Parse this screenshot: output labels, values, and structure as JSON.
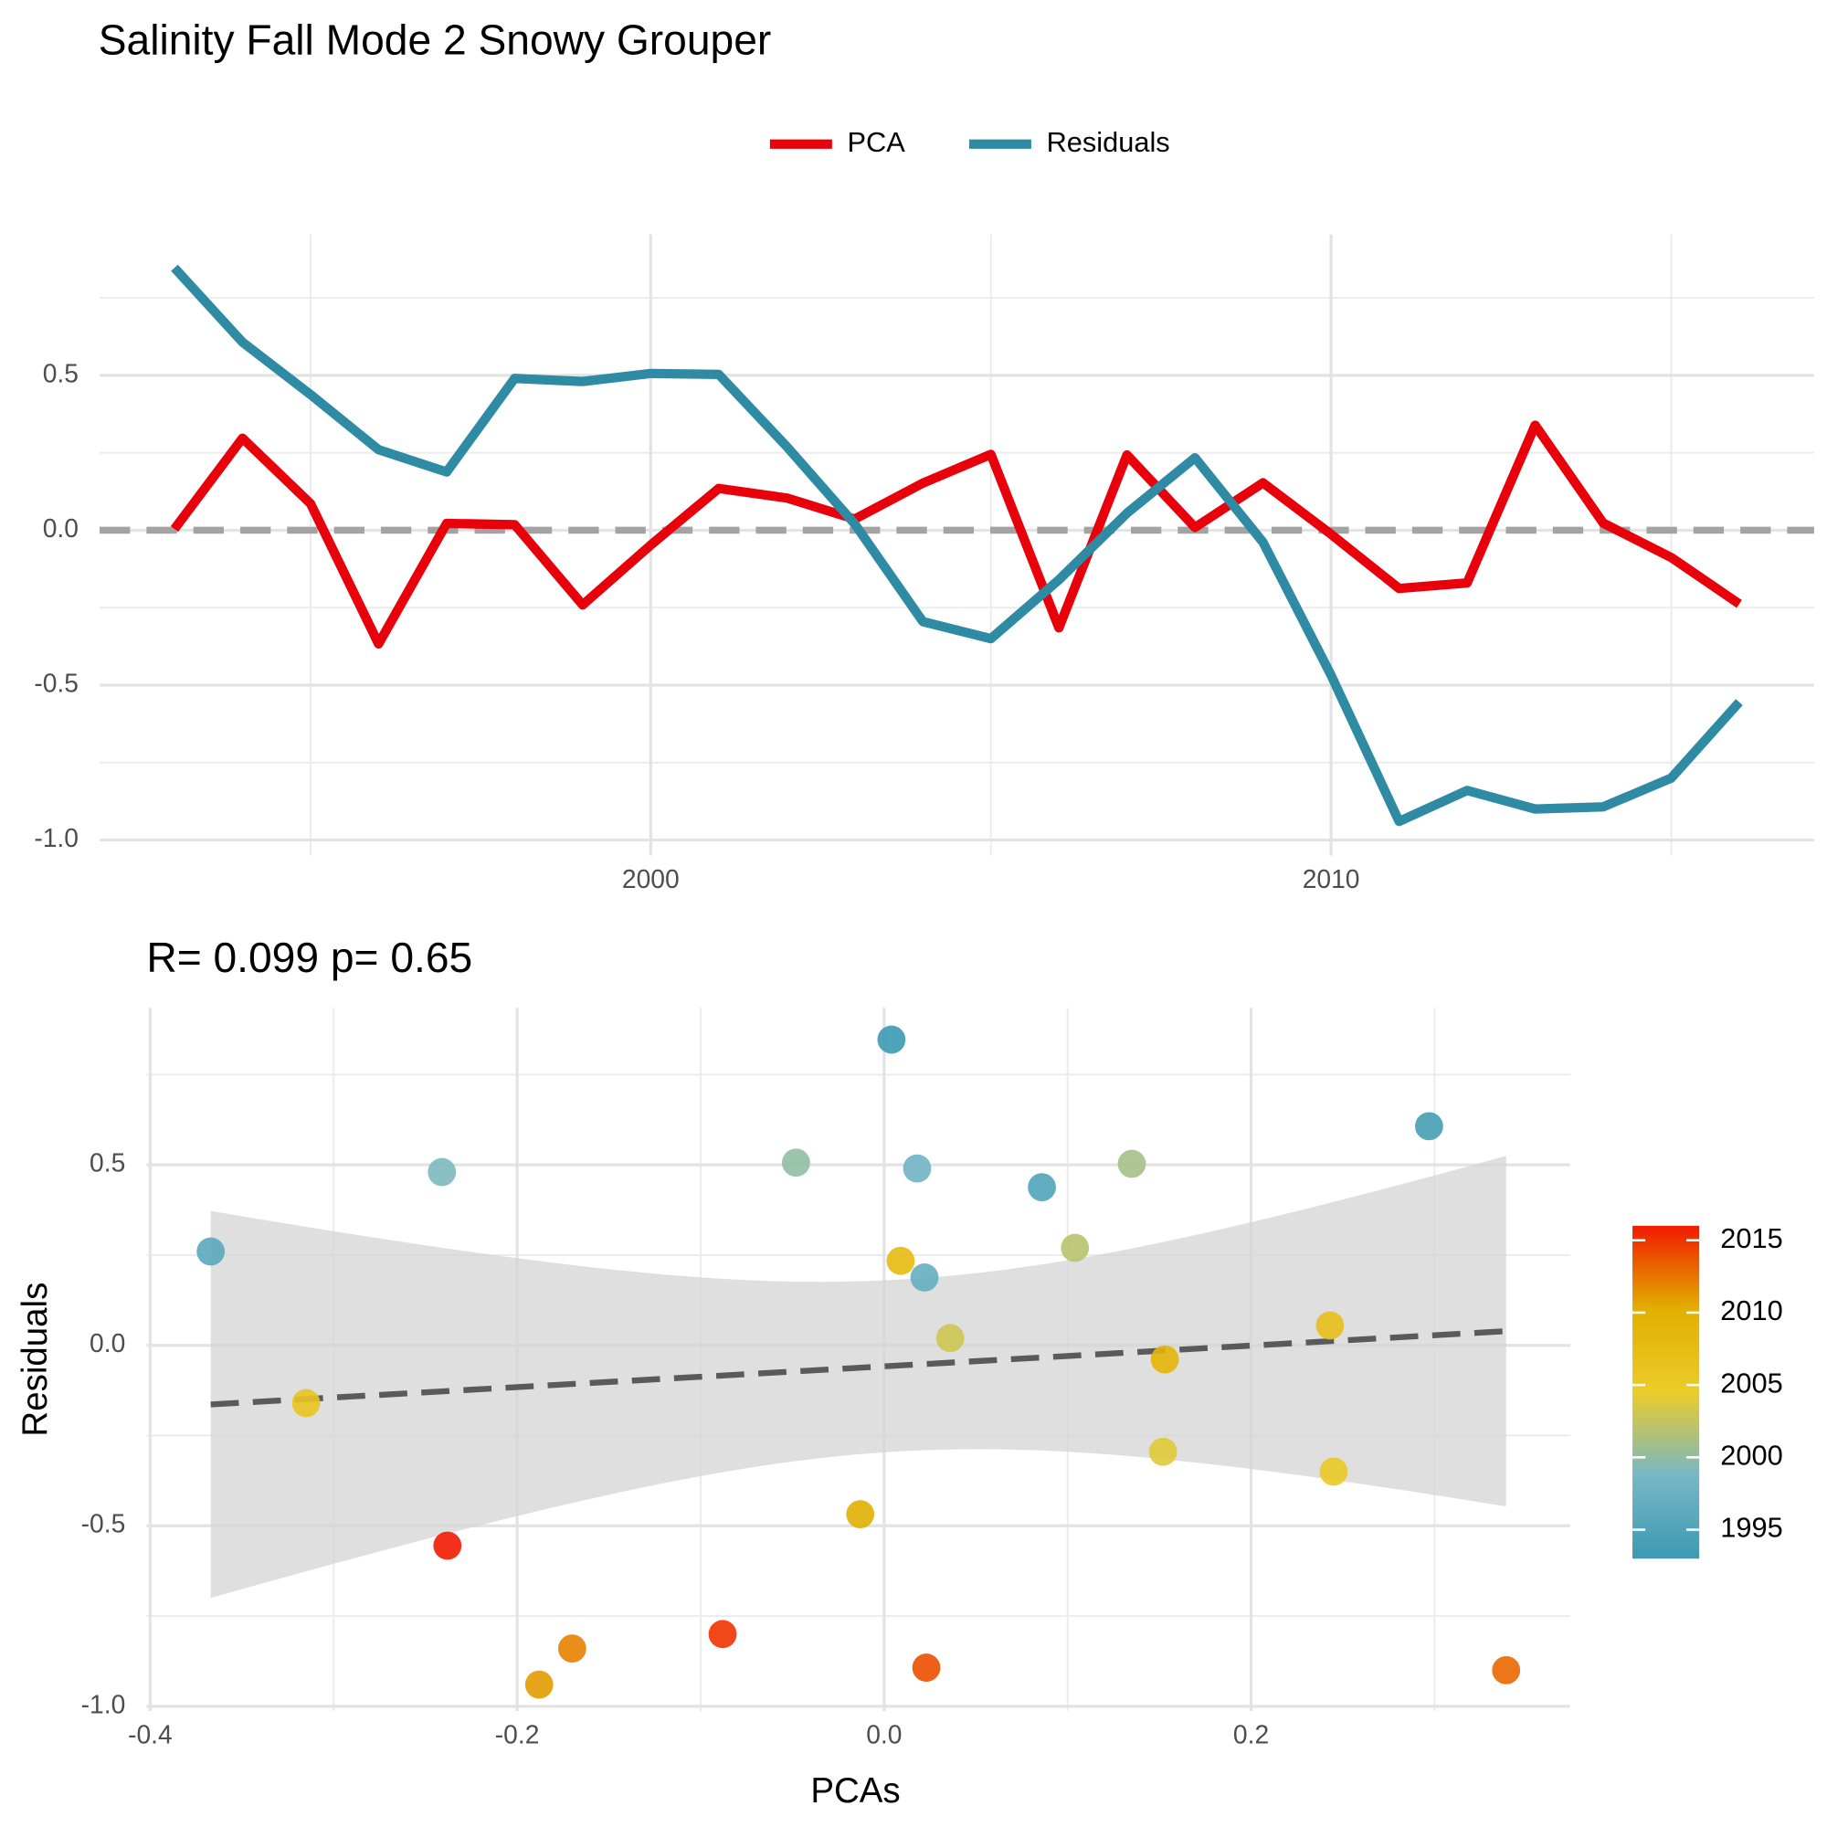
{
  "chart_data": [
    {
      "type": "line",
      "title": "Salinity Fall Mode 2 Snowy Grouper",
      "legend": "top",
      "x": [
        1993,
        1994,
        1995,
        1996,
        1997,
        1998,
        1999,
        2000,
        2001,
        2002,
        2003,
        2004,
        2005,
        2006,
        2007,
        2008,
        2009,
        2010,
        2011,
        2012,
        2013,
        2014,
        2015,
        2016
      ],
      "series": [
        {
          "name": "PCA",
          "color": "#e8000b",
          "values": [
            0.004,
            0.297,
            0.086,
            -0.367,
            0.022,
            0.018,
            -0.241,
            -0.048,
            0.135,
            0.104,
            0.036,
            0.152,
            0.245,
            -0.315,
            0.243,
            0.009,
            0.153,
            -0.013,
            -0.188,
            -0.17,
            0.339,
            0.023,
            -0.088,
            -0.238
          ]
        },
        {
          "name": "Residuals",
          "color": "#2f8aa3",
          "values": [
            0.847,
            0.607,
            0.438,
            0.26,
            0.188,
            0.49,
            0.48,
            0.506,
            0.503,
            0.27,
            0.02,
            -0.295,
            -0.35,
            -0.16,
            0.055,
            0.234,
            -0.039,
            -0.468,
            -0.94,
            -0.84,
            -0.9,
            -0.893,
            -0.8,
            -0.555
          ]
        }
      ],
      "xlim": [
        1991.9,
        2017.1
      ],
      "xticks": [
        2000,
        2010
      ],
      "ylim": [
        -1.05,
        0.955
      ],
      "yticks": [
        {
          "value": -1,
          "label": "-1.0"
        },
        -0.5,
        {
          "value": 0,
          "label": "0.0"
        },
        0.5
      ],
      "hline": 0,
      "grid": true
    },
    {
      "type": "scatter",
      "title": "R= 0.099  p= 0.65",
      "xlabel": "PCAs",
      "ylabel": "Residuals",
      "x": [
        0.004,
        0.297,
        0.086,
        -0.367,
        0.022,
        0.018,
        -0.241,
        -0.048,
        0.135,
        0.104,
        0.036,
        0.152,
        0.245,
        -0.315,
        0.243,
        0.009,
        0.153,
        -0.013,
        -0.188,
        -0.17,
        0.339,
        0.023,
        -0.088,
        -0.238
      ],
      "y": [
        0.847,
        0.607,
        0.438,
        0.26,
        0.188,
        0.49,
        0.48,
        0.506,
        0.503,
        0.27,
        0.02,
        -0.295,
        -0.35,
        -0.16,
        0.055,
        0.234,
        -0.039,
        -0.468,
        -0.94,
        -0.84,
        -0.9,
        -0.893,
        -0.8,
        -0.555
      ],
      "color_values": [
        1993,
        1994,
        1995,
        1996,
        1997,
        1998,
        1999,
        2000,
        2001,
        2002,
        2003,
        2004,
        2005,
        2006,
        2007,
        2008,
        2009,
        2010,
        2011,
        2012,
        2013,
        2014,
        2015,
        2016
      ],
      "colormap": [
        "#3B9AB2",
        "#78B7C5",
        "#EBCC2A",
        "#E1AF00",
        "#F21A00"
      ],
      "colorbar_ticks": [
        1995,
        2000,
        2005,
        2010,
        2015
      ],
      "xlim": [
        -0.402,
        0.374
      ],
      "xticks": [
        -0.4,
        -0.2,
        {
          "value": 0,
          "label": "0.0"
        },
        0.2
      ],
      "ylim": [
        -1.013,
        0.935
      ],
      "yticks": [
        {
          "value": -1,
          "label": "-1.0"
        },
        -0.5,
        {
          "value": 0,
          "label": "0.0"
        },
        0.5
      ],
      "fit": "linear",
      "grid": true
    }
  ]
}
